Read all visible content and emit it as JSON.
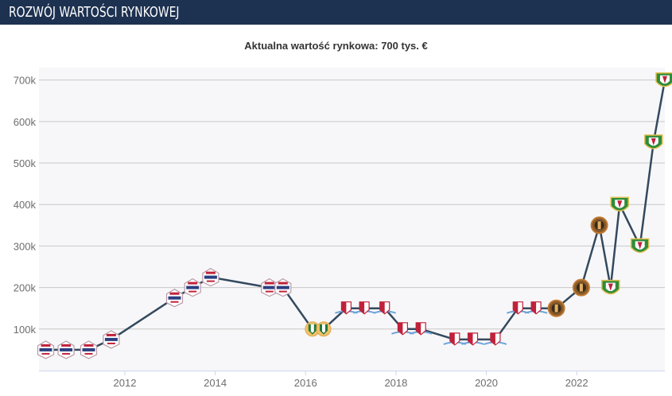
{
  "header": {
    "title": "ROZWÓJ WARTOŚCI RYNKOWEJ"
  },
  "chart_data": {
    "type": "line",
    "title": "Aktualna wartość rynkowa: 700 tys. €",
    "xlabel": "",
    "ylabel": "",
    "x_ticks": [
      "2012",
      "2014",
      "2016",
      "2018",
      "2020",
      "2022"
    ],
    "y_ticks": [
      "100k",
      "200k",
      "300k",
      "400k",
      "500k",
      "600k",
      "700k"
    ],
    "xlim": [
      2010.1,
      2023.95
    ],
    "ylim": [
      0,
      730000
    ],
    "grid": true,
    "series": [
      {
        "color": "#34495e",
        "points": [
          {
            "x": 2010.25,
            "y": 50000,
            "club": "dolcan"
          },
          {
            "x": 2010.7,
            "y": 50000,
            "club": "dolcan"
          },
          {
            "x": 2011.2,
            "y": 50000,
            "club": "dolcan"
          },
          {
            "x": 2011.7,
            "y": 75000,
            "club": "dolcan"
          },
          {
            "x": 2013.1,
            "y": 175000,
            "club": "dolcan"
          },
          {
            "x": 2013.5,
            "y": 200000,
            "club": "dolcan"
          },
          {
            "x": 2013.9,
            "y": 225000,
            "club": "dolcan"
          },
          {
            "x": 2015.2,
            "y": 200000,
            "club": "dolcan"
          },
          {
            "x": 2015.5,
            "y": 200000,
            "club": "dolcan"
          },
          {
            "x": 2016.15,
            "y": 100000,
            "club": "wroclaw-crest"
          },
          {
            "x": 2016.4,
            "y": 100000,
            "club": "wroclaw-crest"
          },
          {
            "x": 2016.9,
            "y": 150000,
            "club": "red-white-shield"
          },
          {
            "x": 2017.3,
            "y": 150000,
            "club": "red-white-shield"
          },
          {
            "x": 2017.75,
            "y": 150000,
            "club": "red-white-shield"
          },
          {
            "x": 2018.15,
            "y": 100000,
            "club": "red-white-shield"
          },
          {
            "x": 2018.55,
            "y": 100000,
            "club": "red-white-shield"
          },
          {
            "x": 2019.3,
            "y": 75000,
            "club": "red-white-shield"
          },
          {
            "x": 2019.7,
            "y": 75000,
            "club": "red-white-shield"
          },
          {
            "x": 2020.2,
            "y": 75000,
            "club": "red-white-shield"
          },
          {
            "x": 2020.7,
            "y": 150000,
            "club": "red-white-shield"
          },
          {
            "x": 2021.1,
            "y": 150000,
            "club": "red-white-shield"
          },
          {
            "x": 2021.55,
            "y": 150000,
            "club": "dark-round-crest"
          },
          {
            "x": 2022.1,
            "y": 200000,
            "club": "dark-round-crest"
          },
          {
            "x": 2022.5,
            "y": 350000,
            "club": "dark-round-crest"
          },
          {
            "x": 2022.75,
            "y": 200000,
            "club": "slask-crest"
          },
          {
            "x": 2022.95,
            "y": 400000,
            "club": "slask-crest"
          },
          {
            "x": 2023.4,
            "y": 300000,
            "club": "slask-crest"
          },
          {
            "x": 2023.7,
            "y": 550000,
            "club": "slask-crest"
          },
          {
            "x": 2023.95,
            "y": 700000,
            "club": "slask-crest"
          }
        ]
      }
    ],
    "colors": {
      "plot_background": "#f7f7f9",
      "grid": "#c8c8c8",
      "axis": "#ccd6eb",
      "line": "#34495e"
    }
  }
}
